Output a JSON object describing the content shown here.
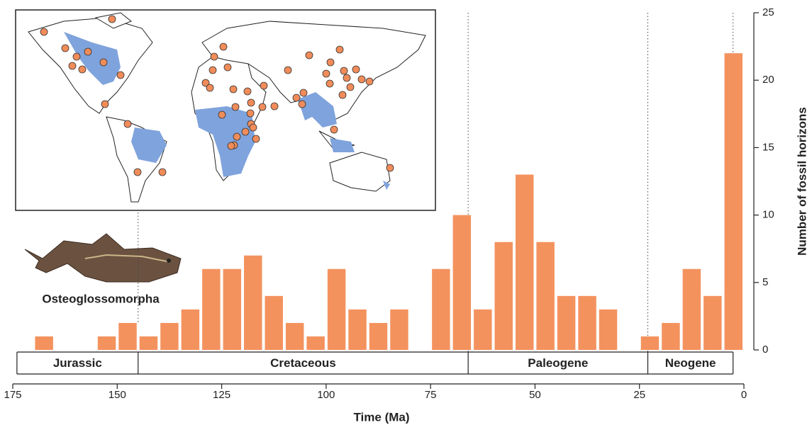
{
  "chart_data": {
    "type": "histogram",
    "x_label": "Time (Ma)",
    "y_label": "Number of fossil horizons",
    "annotation": "Osteoglossomorpha",
    "bins": [
      170,
      165,
      160,
      155,
      150,
      145,
      140,
      135,
      130,
      125,
      120,
      115,
      110,
      105,
      100,
      95,
      90,
      85,
      80,
      75,
      70,
      65,
      60,
      55,
      50,
      45,
      40,
      35,
      30,
      25,
      20,
      15,
      10,
      5,
      0
    ],
    "counts": [
      1,
      0,
      0,
      1,
      2,
      1,
      2,
      3,
      6,
      6,
      7,
      4,
      2,
      1,
      6,
      3,
      2,
      3,
      0,
      6,
      10,
      3,
      8,
      13,
      8,
      4,
      4,
      3,
      0,
      1,
      2,
      6,
      4,
      22
    ],
    "color": "#f4925e",
    "xlim": [
      175,
      0
    ],
    "xticks": [
      175,
      150,
      125,
      100,
      75,
      50,
      25,
      0
    ],
    "ylim": [
      0,
      25
    ],
    "yticks": [
      0,
      5,
      10,
      15,
      20,
      25
    ],
    "periods": [
      {
        "name": "Jurassic",
        "start": 174,
        "end": 145
      },
      {
        "name": "Cretaceous",
        "start": 145,
        "end": 66
      },
      {
        "name": "Paleogene",
        "start": 66,
        "end": 23
      },
      {
        "name": "Neogene",
        "start": 23,
        "end": 2.6
      }
    ]
  }
}
